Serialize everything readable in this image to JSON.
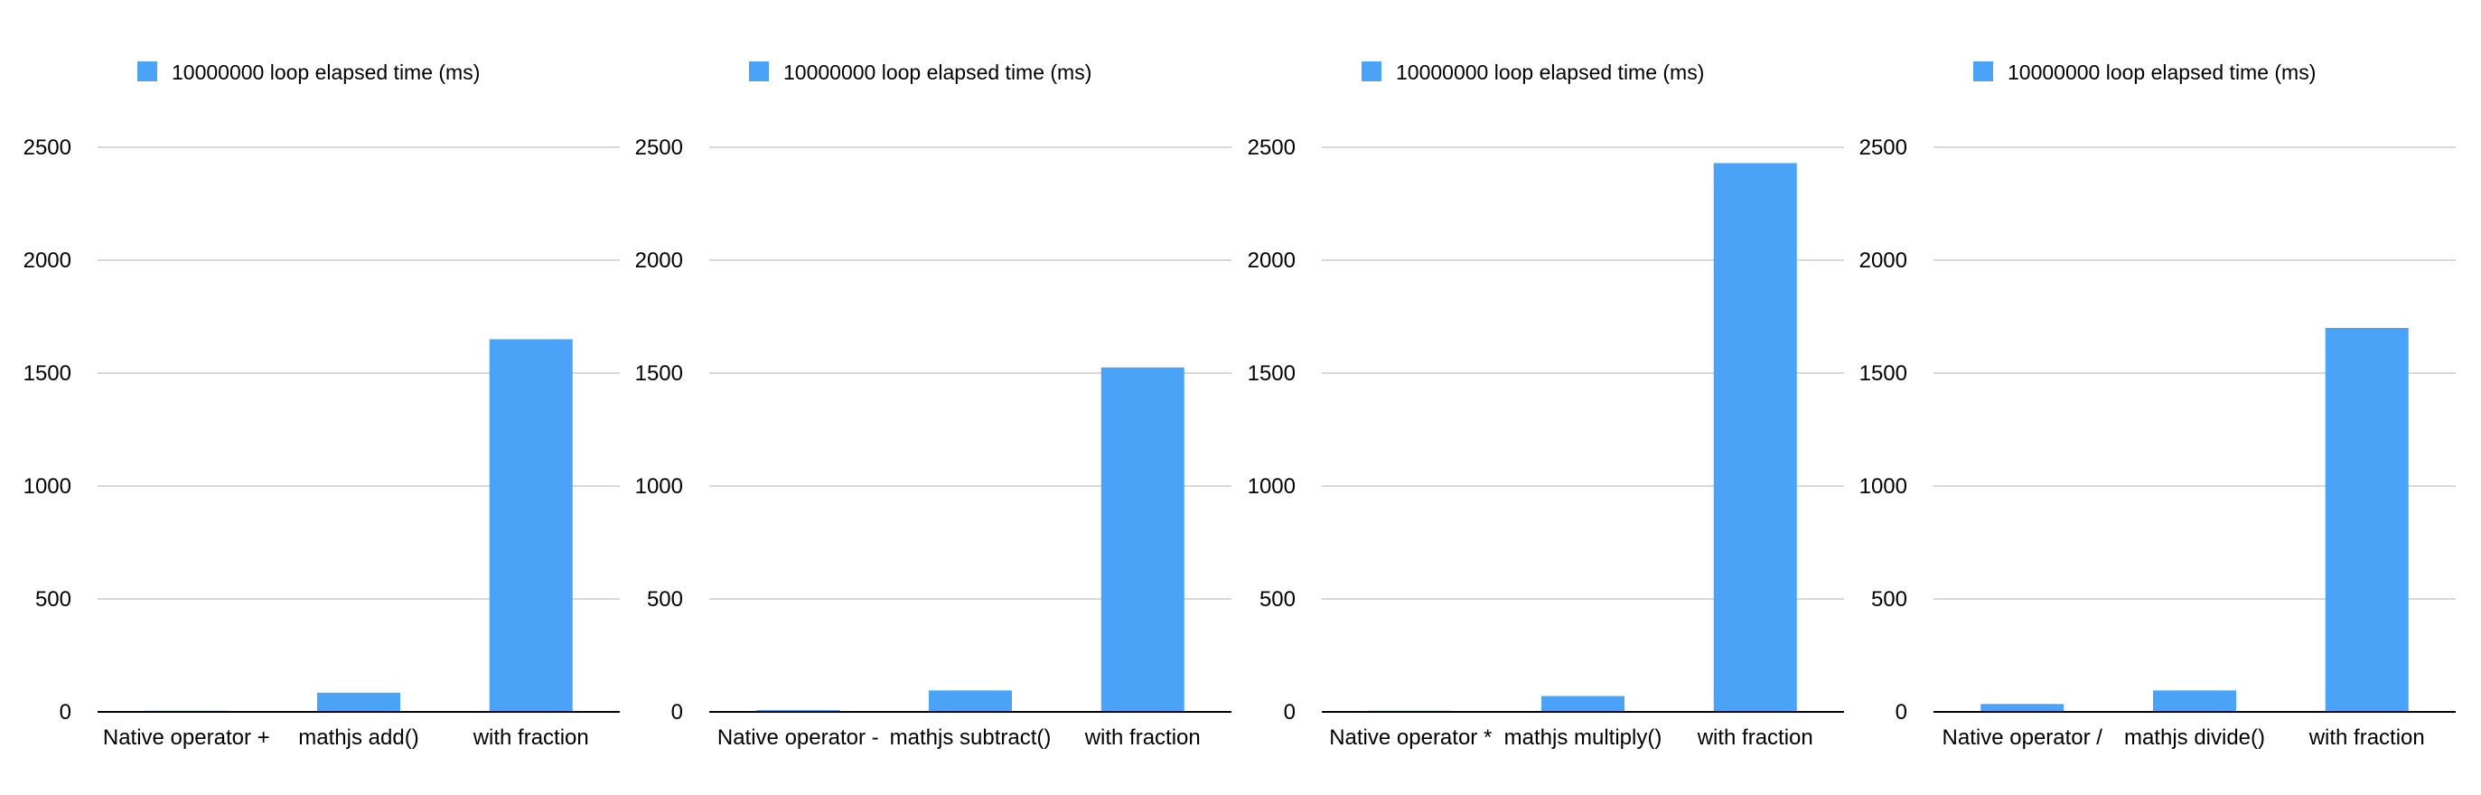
{
  "theme": {
    "bar_color": "#4aa3f7",
    "grid_color": "#cccccc",
    "axis_color": "#000000",
    "text_color": "#000000"
  },
  "chart_data": [
    {
      "type": "bar",
      "legend": {
        "label": "10000000 loop elapsed time (ms)",
        "position": "top-left"
      },
      "categories": [
        "Native operator +",
        "mathjs add()",
        "with fraction"
      ],
      "series": [
        {
          "name": "10000000 loop elapsed time (ms)",
          "values": [
            5,
            85,
            1650
          ]
        }
      ],
      "ylim": [
        0,
        2500
      ],
      "yticks": [
        0,
        500,
        1000,
        1500,
        2000,
        2500
      ],
      "grid": true
    },
    {
      "type": "bar",
      "legend": {
        "label": "10000000 loop elapsed time (ms)",
        "position": "top-left"
      },
      "categories": [
        "Native operator -",
        "mathjs subtract()",
        "with fraction"
      ],
      "series": [
        {
          "name": "10000000 loop elapsed time (ms)",
          "values": [
            8,
            95,
            1525
          ]
        }
      ],
      "ylim": [
        0,
        2500
      ],
      "yticks": [
        0,
        500,
        1000,
        1500,
        2000,
        2500
      ],
      "grid": true
    },
    {
      "type": "bar",
      "legend": {
        "label": "10000000 loop elapsed time (ms)",
        "position": "top-left"
      },
      "categories": [
        "Native operator *",
        "mathjs multiply()",
        "with fraction"
      ],
      "series": [
        {
          "name": "10000000 loop elapsed time (ms)",
          "values": [
            5,
            70,
            2430
          ]
        }
      ],
      "ylim": [
        0,
        2500
      ],
      "yticks": [
        0,
        500,
        1000,
        1500,
        2000,
        2500
      ],
      "grid": true
    },
    {
      "type": "bar",
      "legend": {
        "label": "10000000 loop elapsed time (ms)",
        "position": "top-left"
      },
      "categories": [
        "Native operator /",
        "mathjs divide()",
        "with fraction"
      ],
      "series": [
        {
          "name": "10000000 loop elapsed time (ms)",
          "values": [
            35,
            95,
            1700
          ]
        }
      ],
      "ylim": [
        0,
        2500
      ],
      "yticks": [
        0,
        500,
        1000,
        1500,
        2000,
        2500
      ],
      "grid": true
    }
  ]
}
